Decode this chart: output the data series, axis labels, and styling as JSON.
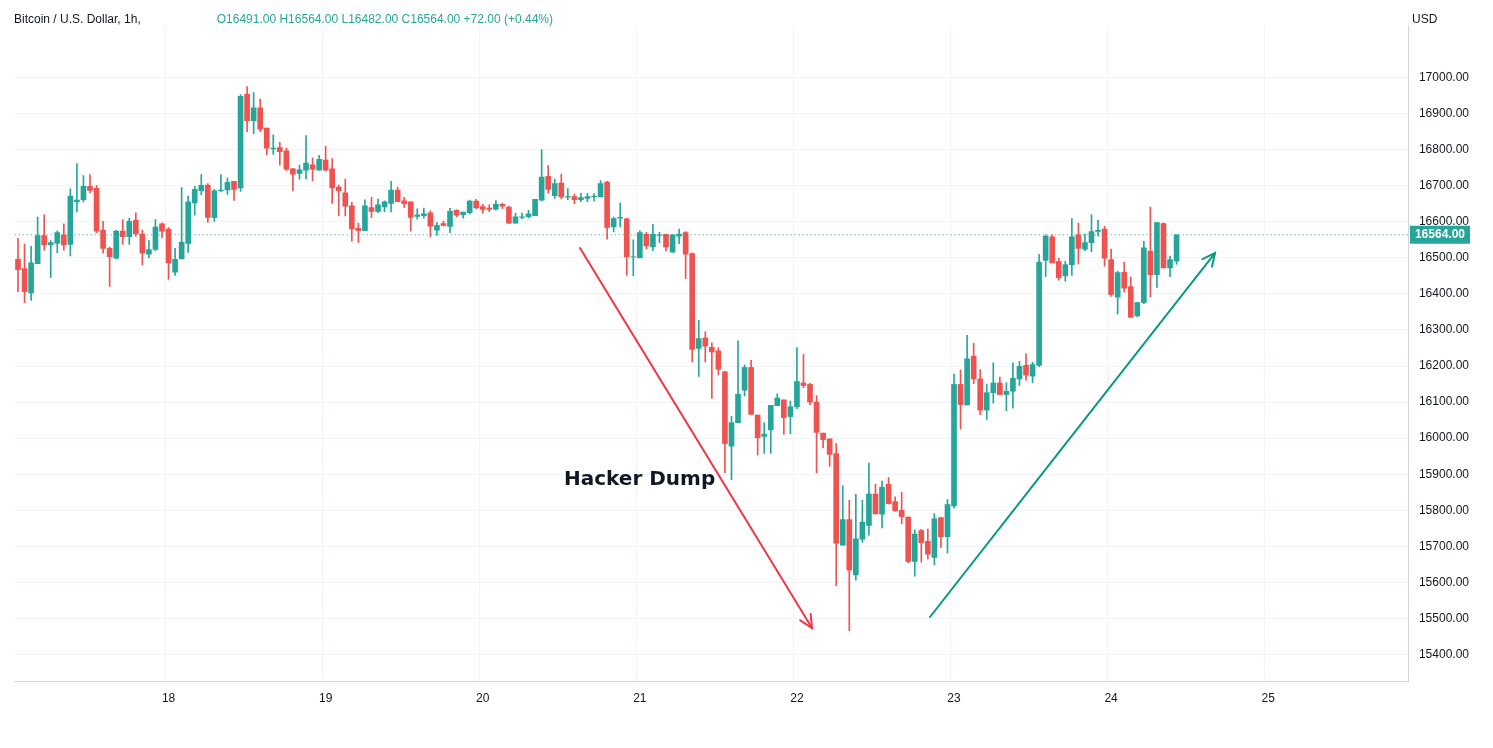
{
  "chart_data": {
    "type": "candlestick",
    "title": "Bitcoin / U.S. Dollar, 1h,",
    "subtitle": "O16491.00 H16564.00 L16482.00 C16564.00 +72.00 (+0.44%)",
    "ylabel": "USD",
    "annotations": [
      "Hacker Dump"
    ],
    "categories": [
      null,
      null,
      null,
      null,
      null,
      null,
      null,
      null,
      null,
      null,
      null,
      null,
      null,
      null,
      null,
      null,
      null,
      null,
      null,
      null,
      null,
      null,
      null,
      "18",
      null,
      null,
      null,
      null,
      null,
      null,
      null,
      null,
      null,
      null,
      null,
      null,
      null,
      null,
      null,
      null,
      null,
      null,
      null,
      null,
      null,
      null,
      null,
      "19",
      null,
      null,
      null,
      null,
      null,
      null,
      null,
      null,
      null,
      null,
      null,
      null,
      null,
      null,
      null,
      null,
      null,
      null,
      null,
      null,
      null,
      null,
      null,
      "20",
      null,
      null,
      null,
      null,
      null,
      null,
      null,
      null,
      null,
      null,
      null,
      null,
      null,
      null,
      null,
      null,
      null,
      null,
      null,
      null,
      null,
      null,
      null,
      "21",
      null,
      null,
      null,
      null,
      null,
      null,
      null,
      null,
      null,
      null,
      null,
      null,
      null,
      null,
      null,
      null,
      null,
      null,
      null,
      null,
      null,
      null,
      null,
      "22",
      null,
      null,
      null,
      null,
      null,
      null,
      null,
      null,
      null,
      null,
      null,
      null,
      null,
      null,
      null,
      null,
      null,
      null,
      null,
      null,
      null,
      null,
      null,
      "23",
      null,
      null,
      null,
      null,
      null,
      null,
      null,
      null,
      null,
      null,
      null,
      null,
      null,
      null,
      null,
      null,
      null,
      null,
      null,
      null,
      null,
      null,
      null,
      "24",
      null,
      null,
      null,
      null,
      null,
      null,
      null,
      null,
      null,
      null,
      null,
      null,
      null,
      null,
      null,
      null,
      null,
      null,
      null,
      null,
      null,
      null,
      null,
      "25",
      null,
      null,
      null,
      null,
      null,
      null,
      null,
      null,
      null,
      null,
      null,
      null,
      null,
      null,
      null,
      null,
      null,
      null,
      null,
      null,
      null
    ],
    "ohlc": [
      [
        16496,
        16554,
        16406,
        16467
      ],
      [
        16470,
        16538,
        16376,
        16406
      ],
      [
        16403,
        16532,
        16382,
        16486
      ],
      [
        16484,
        16613,
        16484,
        16562
      ],
      [
        16562,
        16619,
        16521,
        16536
      ],
      [
        16536,
        16548,
        16446,
        16542
      ],
      [
        16540,
        16575,
        16514,
        16570
      ],
      [
        16564,
        16594,
        16521,
        16536
      ],
      [
        16537,
        16691,
        16505,
        16671
      ],
      [
        16655,
        16761,
        16627,
        16660
      ],
      [
        16661,
        16728,
        16655,
        16698
      ],
      [
        16698,
        16731,
        16680,
        16687
      ],
      [
        16693,
        16701,
        16570,
        16574
      ],
      [
        16577,
        16601,
        16513,
        16526
      ],
      [
        16526,
        16530,
        16421,
        16503
      ],
      [
        16499,
        16576,
        16497,
        16574
      ],
      [
        16574,
        16606,
        16537,
        16559
      ],
      [
        16559,
        16610,
        16537,
        16601
      ],
      [
        16604,
        16625,
        16560,
        16566
      ],
      [
        16566,
        16577,
        16480,
        16513
      ],
      [
        16510,
        16548,
        16500,
        16523
      ],
      [
        16523,
        16606,
        16520,
        16585
      ],
      [
        16594,
        16597,
        16556,
        16574
      ],
      [
        16580,
        16584,
        16440,
        16486
      ],
      [
        16460,
        16526,
        16451,
        16496
      ],
      [
        16497,
        16695,
        16497,
        16544
      ],
      [
        16540,
        16671,
        16515,
        16655
      ],
      [
        16652,
        16698,
        16618,
        16690
      ],
      [
        16686,
        16731,
        16675,
        16701
      ],
      [
        16702,
        16706,
        16598,
        16612
      ],
      [
        16611,
        16690,
        16601,
        16686
      ],
      [
        16686,
        16731,
        16683,
        16688
      ],
      [
        16688,
        16722,
        16676,
        16709
      ],
      [
        16712,
        16712,
        16659,
        16690
      ],
      [
        16694,
        16952,
        16684,
        16948
      ],
      [
        16953,
        16975,
        16850,
        16880
      ],
      [
        16880,
        16958,
        16844,
        16916
      ],
      [
        16916,
        16940,
        16850,
        16857
      ],
      [
        16860,
        16860,
        16785,
        16804
      ],
      [
        16802,
        16841,
        16787,
        16804
      ],
      [
        16806,
        16820,
        16757,
        16794
      ],
      [
        16797,
        16804,
        16742,
        16746
      ],
      [
        16747,
        16748,
        16686,
        16732
      ],
      [
        16734,
        16757,
        16718,
        16744
      ],
      [
        16743,
        16839,
        16719,
        16763
      ],
      [
        16758,
        16777,
        16713,
        16746
      ],
      [
        16743,
        16784,
        16743,
        16773
      ],
      [
        16771,
        16809,
        16740,
        16743
      ],
      [
        16747,
        16775,
        16651,
        16694
      ],
      [
        16696,
        16702,
        16616,
        16686
      ],
      [
        16680,
        16718,
        16616,
        16643
      ],
      [
        16644,
        16654,
        16546,
        16580
      ],
      [
        16582,
        16596,
        16543,
        16575
      ],
      [
        16575,
        16661,
        16575,
        16644
      ],
      [
        16639,
        16668,
        16611,
        16629
      ],
      [
        16629,
        16663,
        16625,
        16647
      ],
      [
        16641,
        16658,
        16628,
        16655
      ],
      [
        16651,
        16712,
        16627,
        16688
      ],
      [
        16688,
        16696,
        16656,
        16656
      ],
      [
        16658,
        16668,
        16640,
        16650
      ],
      [
        16655,
        16655,
        16574,
        16612
      ],
      [
        16615,
        16636,
        16607,
        16619
      ],
      [
        16617,
        16638,
        16610,
        16622
      ],
      [
        16625,
        16630,
        16557,
        16588
      ],
      [
        16577,
        16598,
        16562,
        16590
      ],
      [
        16595,
        16602,
        16588,
        16590
      ],
      [
        16587,
        16637,
        16570,
        16629
      ],
      [
        16632,
        16634,
        16613,
        16618
      ],
      [
        16620,
        16627,
        16610,
        16627
      ],
      [
        16625,
        16660,
        16622,
        16657
      ],
      [
        16657,
        16662,
        16636,
        16639
      ],
      [
        16642,
        16648,
        16624,
        16634
      ],
      [
        16638,
        16647,
        16628,
        16634
      ],
      [
        16635,
        16659,
        16632,
        16648
      ],
      [
        16648,
        16652,
        16636,
        16643
      ],
      [
        16641,
        16643,
        16595,
        16596
      ],
      [
        16596,
        16624,
        16596,
        16614
      ],
      [
        16612,
        16624,
        16608,
        16614
      ],
      [
        16614,
        16632,
        16610,
        16622
      ],
      [
        16617,
        16662,
        16617,
        16662
      ],
      [
        16660,
        16800,
        16658,
        16724
      ],
      [
        16726,
        16756,
        16679,
        16690
      ],
      [
        16672,
        16718,
        16665,
        16706
      ],
      [
        16707,
        16732,
        16663,
        16669
      ],
      [
        16668,
        16692,
        16661,
        16670
      ],
      [
        16670,
        16677,
        16650,
        16661
      ],
      [
        16661,
        16679,
        16656,
        16667
      ],
      [
        16665,
        16679,
        16656,
        16670
      ],
      [
        16669,
        16678,
        16658,
        16671
      ],
      [
        16669,
        16714,
        16669,
        16706
      ],
      [
        16710,
        16712,
        16552,
        16584
      ],
      [
        16586,
        16613,
        16572,
        16609
      ],
      [
        16610,
        16652,
        16586,
        16612
      ],
      [
        16608,
        16610,
        16452,
        16503
      ],
      [
        16502,
        16550,
        16450,
        16503
      ],
      [
        16500,
        16575,
        16500,
        16570
      ],
      [
        16565,
        16571,
        16525,
        16533
      ],
      [
        16530,
        16593,
        16520,
        16565
      ],
      [
        16562,
        16571,
        16542,
        16564
      ],
      [
        16565,
        16565,
        16519,
        16530
      ],
      [
        16516,
        16565,
        16516,
        16563
      ],
      [
        16560,
        16580,
        16539,
        16566
      ],
      [
        16570,
        16573,
        16442,
        16510
      ],
      [
        16512,
        16514,
        16211,
        16246
      ],
      [
        16249,
        16327,
        16171,
        16276
      ],
      [
        16278,
        16295,
        16211,
        16255
      ],
      [
        16252,
        16264,
        16110,
        16239
      ],
      [
        16242,
        16251,
        16175,
        16191
      ],
      [
        16184,
        16186,
        15904,
        15985
      ],
      [
        15978,
        16061,
        15885,
        16043
      ],
      [
        16043,
        16270,
        16043,
        16122
      ],
      [
        16133,
        16203,
        16117,
        16196
      ],
      [
        16196,
        16216,
        16066,
        16066
      ],
      [
        16064,
        16064,
        15953,
        16001
      ],
      [
        16005,
        16043,
        15958,
        16011
      ],
      [
        16023,
        16091,
        15958,
        16091
      ],
      [
        16090,
        16123,
        16090,
        16111
      ],
      [
        16106,
        16106,
        16011,
        16057
      ],
      [
        16060,
        16103,
        16012,
        16087
      ],
      [
        16087,
        16251,
        16082,
        16157
      ],
      [
        16153,
        16232,
        16140,
        16146
      ],
      [
        16149,
        16152,
        16093,
        16100
      ],
      [
        16100,
        16118,
        15904,
        16016
      ],
      [
        16014,
        16014,
        15973,
        15996
      ],
      [
        15998,
        15998,
        15922,
        15955
      ],
      [
        15957,
        15985,
        15591,
        15709
      ],
      [
        15703,
        15868,
        15703,
        15774
      ],
      [
        15774,
        15828,
        15466,
        15634
      ],
      [
        15621,
        15844,
        15606,
        15721
      ],
      [
        15720,
        15828,
        15711,
        15767
      ],
      [
        15758,
        15931,
        15731,
        15845
      ],
      [
        15845,
        15872,
        15790,
        15790
      ],
      [
        15789,
        15881,
        15751,
        15864
      ],
      [
        15872,
        15891,
        15818,
        15818
      ],
      [
        15824,
        15837,
        15797,
        15799
      ],
      [
        15800,
        15850,
        15763,
        15782
      ],
      [
        15781,
        15781,
        15655,
        15658
      ],
      [
        15658,
        15746,
        15617,
        15734
      ],
      [
        15744,
        15747,
        15656,
        15710
      ],
      [
        15714,
        15748,
        15665,
        15678
      ],
      [
        15669,
        15791,
        15649,
        15776
      ],
      [
        15780,
        15780,
        15697,
        15727
      ],
      [
        15727,
        15830,
        15681,
        15816
      ],
      [
        15812,
        16178,
        15806,
        16149
      ],
      [
        16149,
        16189,
        16025,
        16093
      ],
      [
        16092,
        16285,
        16092,
        16220
      ],
      [
        16227,
        16263,
        16151,
        16164
      ],
      [
        16164,
        16190,
        16065,
        16078
      ],
      [
        16078,
        16150,
        16052,
        16126
      ],
      [
        16126,
        16209,
        16097,
        16153
      ],
      [
        16153,
        16169,
        16121,
        16121
      ],
      [
        16121,
        16154,
        16076,
        16130
      ],
      [
        16130,
        16209,
        16083,
        16166
      ],
      [
        16164,
        16213,
        16146,
        16199
      ],
      [
        16202,
        16234,
        16161,
        16175
      ],
      [
        16172,
        16211,
        16154,
        16204
      ],
      [
        16202,
        16510,
        16198,
        16488
      ],
      [
        16493,
        16564,
        16448,
        16560
      ],
      [
        16558,
        16564,
        16486,
        16486
      ],
      [
        16490,
        16499,
        16438,
        16445
      ],
      [
        16450,
        16490,
        16435,
        16481
      ],
      [
        16481,
        16609,
        16451,
        16558
      ],
      [
        16564,
        16596,
        16483,
        16526
      ],
      [
        16524,
        16566,
        16520,
        16542
      ],
      [
        16542,
        16620,
        16517,
        16573
      ],
      [
        16573,
        16604,
        16560,
        16576
      ],
      [
        16580,
        16587,
        16477,
        16499
      ],
      [
        16495,
        16524,
        16393,
        16398
      ],
      [
        16391,
        16463,
        16344,
        16459
      ],
      [
        16460,
        16488,
        16405,
        16416
      ],
      [
        16420,
        16447,
        16335,
        16335
      ],
      [
        16339,
        16376,
        16336,
        16376
      ],
      [
        16376,
        16546,
        16373,
        16528
      ],
      [
        16519,
        16641,
        16391,
        16453
      ],
      [
        16453,
        16598,
        16418,
        16598
      ],
      [
        16595,
        16597,
        16472,
        16472
      ],
      [
        16472,
        16505,
        16448,
        16495
      ],
      [
        16491,
        16564,
        16482,
        16564
      ],
      null,
      null,
      null,
      null,
      null,
      null,
      null,
      null,
      null,
      null,
      null,
      null,
      null,
      null,
      null,
      null,
      null,
      null,
      null,
      null,
      null,
      null,
      null,
      null,
      null,
      null,
      null,
      null,
      null,
      null,
      null,
      null,
      null,
      null,
      null
    ],
    "ylim": [
      15325,
      17145
    ],
    "yticks": [
      {
        "value": 15400,
        "label": "15400.00"
      },
      {
        "value": 15500,
        "label": "15500.00"
      },
      {
        "value": 15600,
        "label": "15600.00"
      },
      {
        "value": 15700,
        "label": "15700.00"
      },
      {
        "value": 15800,
        "label": "15800.00"
      },
      {
        "value": 15900,
        "label": "15900.00"
      },
      {
        "value": 16000,
        "label": "16000.00"
      },
      {
        "value": 16100,
        "label": "16100.00"
      },
      {
        "value": 16200,
        "label": "16200.00"
      },
      {
        "value": 16300,
        "label": "16300.00"
      },
      {
        "value": 16400,
        "label": "16400.00"
      },
      {
        "value": 16500,
        "label": "16500.00"
      },
      {
        "value": 16600,
        "label": "16600.00"
      },
      {
        "value": 16700,
        "label": "16700.00"
      },
      {
        "value": 16800,
        "label": "16800.00"
      },
      {
        "value": 16900,
        "label": "16900.00"
      },
      {
        "value": 17000,
        "label": "17000.00"
      }
    ],
    "ref_lines": [
      {
        "axis": "y",
        "value": 16564,
        "label": "16564.00",
        "color": "#26a69a",
        "line_style": "dotted"
      }
    ],
    "grid": true
  }
}
